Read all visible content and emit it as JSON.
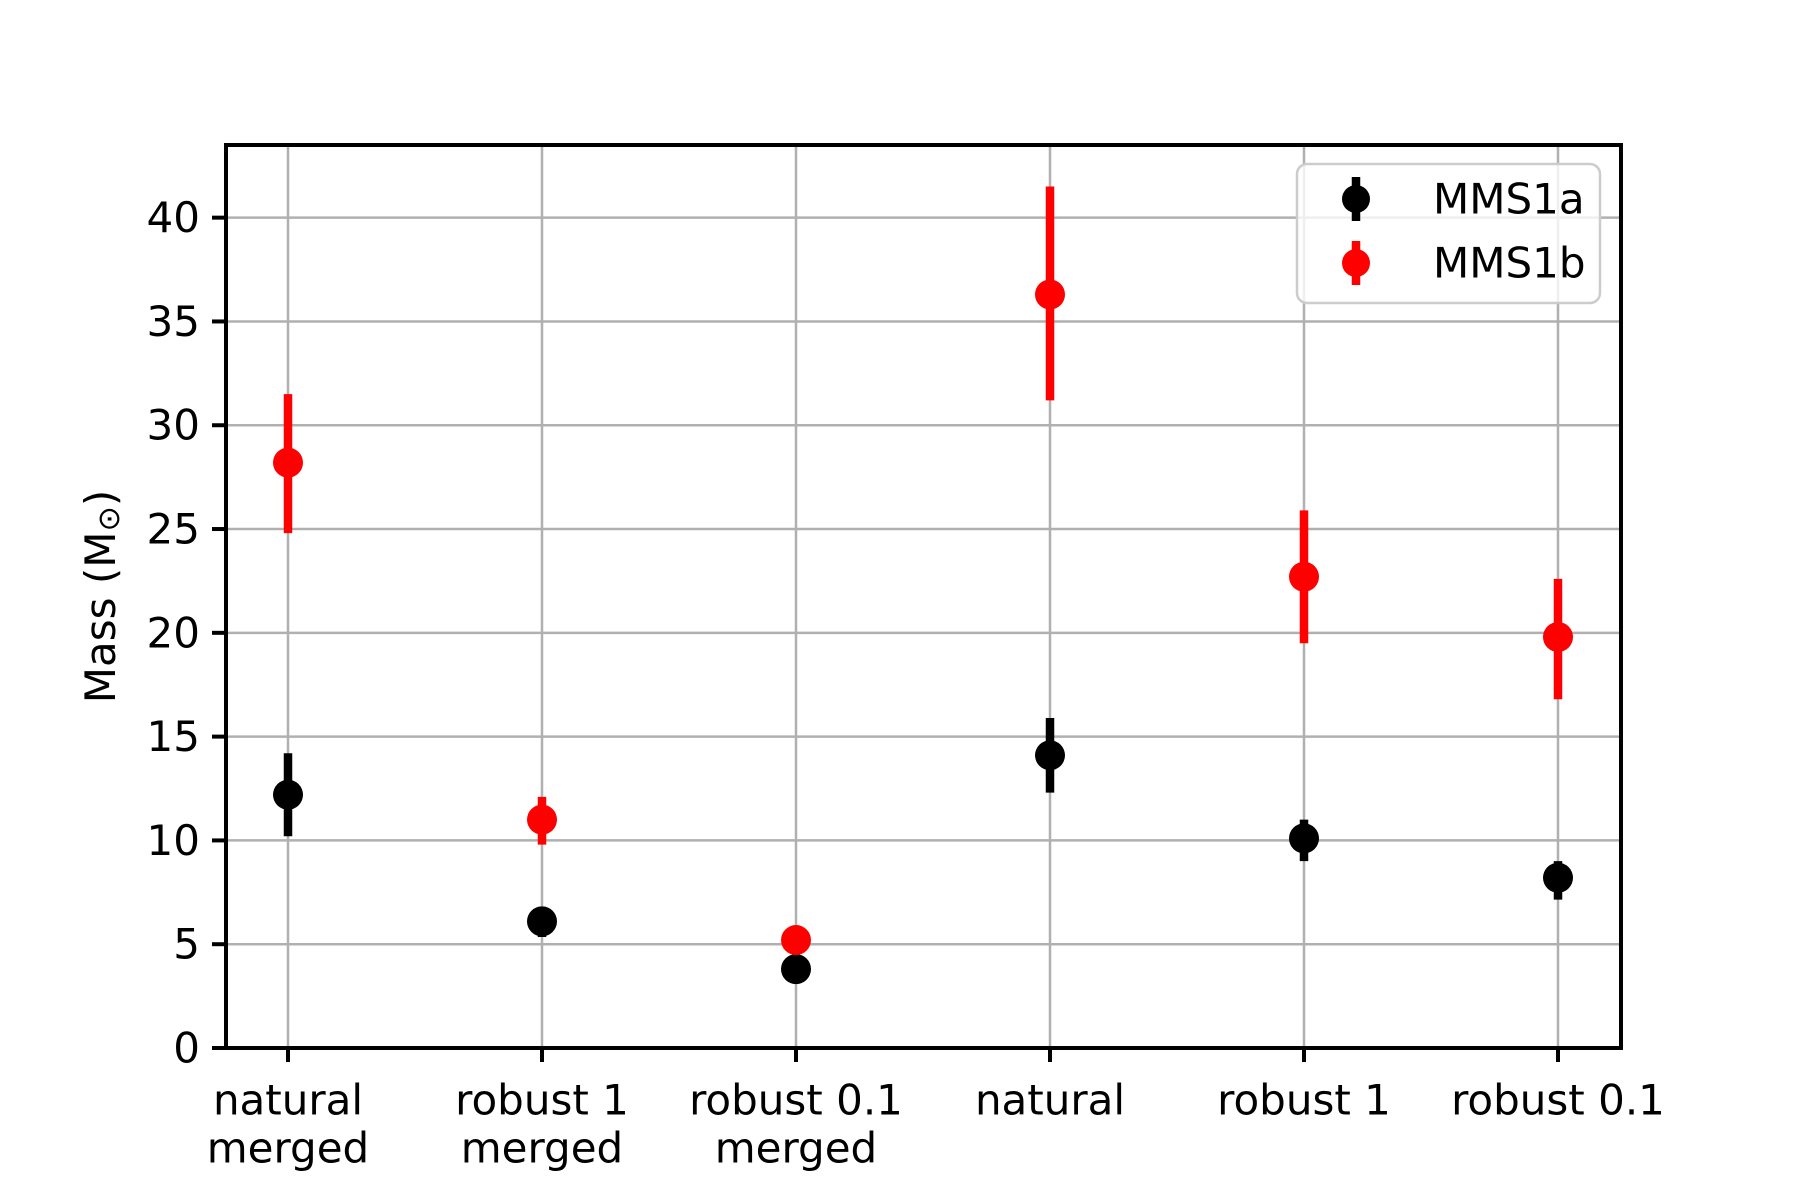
{
  "figure": {
    "background": "#ffffff"
  },
  "chart_data": {
    "type": "scatter",
    "subtype": "errorbar",
    "title": "",
    "xlabel": "",
    "ylabel": "Mass (M⊙)",
    "categories": [
      "natural\nmerged",
      "robust 1\nmerged",
      "robust 0.1\nmerged",
      "natural",
      "robust 1",
      "robust 0.1"
    ],
    "series": [
      {
        "name": "MMS1a",
        "color": "#000000",
        "values": [
          12.2,
          6.1,
          3.8,
          14.1,
          10.1,
          8.2
        ],
        "err_plus": [
          2.0,
          0.7,
          0.6,
          1.8,
          0.9,
          0.8
        ],
        "err_minus": [
          2.0,
          0.75,
          0.6,
          1.8,
          1.1,
          1.05
        ]
      },
      {
        "name": "MMS1b",
        "color": "#ff0000",
        "values": [
          28.2,
          11.0,
          5.2,
          36.3,
          22.7,
          19.8
        ],
        "err_plus": [
          3.3,
          1.1,
          0.6,
          5.2,
          3.2,
          2.8
        ],
        "err_minus": [
          3.4,
          1.2,
          0.6,
          5.1,
          3.2,
          3.0
        ]
      }
    ],
    "yticks": [
      0,
      5,
      10,
      15,
      20,
      25,
      30,
      35,
      40
    ],
    "ylim": [
      0,
      43.5
    ],
    "grid": true,
    "legend_position": "upper right",
    "colors": {
      "grid": "#b0b0b0",
      "spine": "#000000",
      "tick_label": "#000000",
      "legend_border": "#cccccc",
      "legend_bg_alpha": 0.8
    }
  }
}
